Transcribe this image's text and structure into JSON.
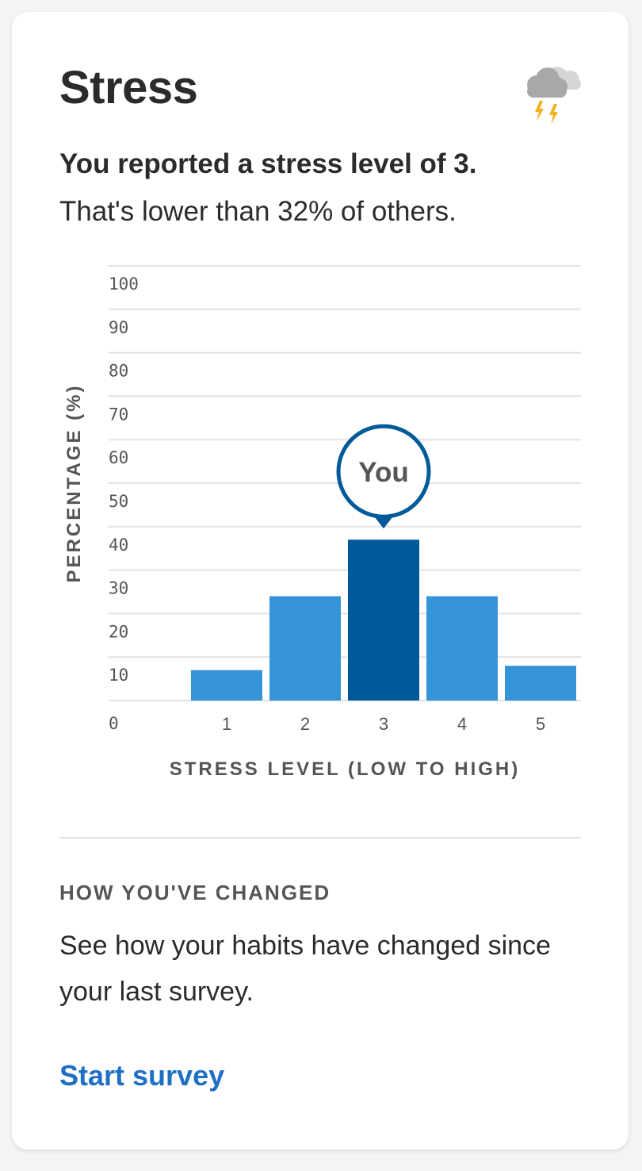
{
  "card": {
    "title": "Stress",
    "icon": "storm-cloud-icon",
    "headline": "You reported a stress level of 3.",
    "subline": "That's lower than 32% of others."
  },
  "colors": {
    "bar": "#3593d8",
    "bar_highlight": "#005a99",
    "grid": "#e2e2e2",
    "link": "#1f6fc5"
  },
  "chart_data": {
    "type": "bar",
    "categories": [
      "1",
      "2",
      "3",
      "4",
      "5"
    ],
    "values": [
      7,
      24,
      37,
      24,
      8
    ],
    "highlight_index": 2,
    "highlight_label": "You",
    "xlabel": "STRESS LEVEL (LOW TO HIGH)",
    "ylabel": "PERCENTAGE (%)",
    "ylim": [
      0,
      100
    ],
    "yticks": [
      "0",
      "10",
      "20",
      "30",
      "40",
      "50",
      "60",
      "70",
      "80",
      "90",
      "100"
    ],
    "grid": true
  },
  "changes": {
    "heading": "HOW YOU'VE CHANGED",
    "body": "See how your habits have changed since your last survey.",
    "link": "Start survey"
  }
}
